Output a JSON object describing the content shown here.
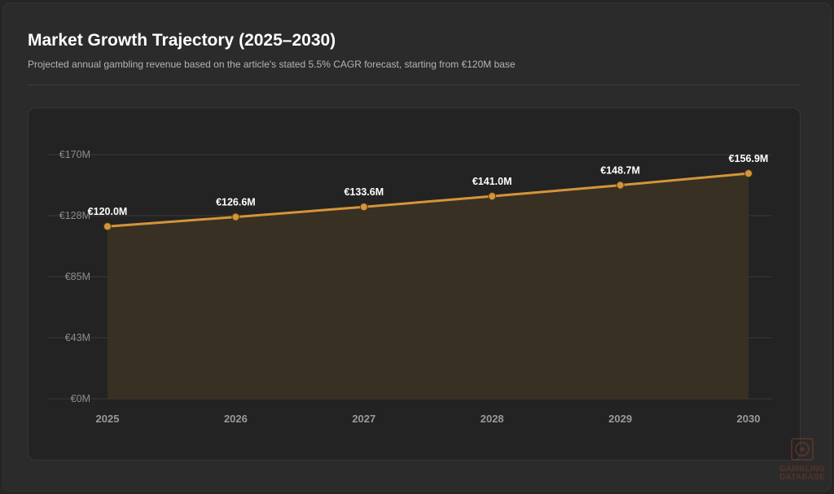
{
  "header": {
    "title": "Market Growth Trajectory (2025–2030)",
    "subtitle": "Projected annual gambling revenue based on the article's stated 5.5% CAGR forecast, starting from €120M base"
  },
  "colors": {
    "line": "#d4953a",
    "area": "#3a3124",
    "grid": "#3a3a3a"
  },
  "chart_data": {
    "type": "area",
    "title": "",
    "xlabel": "",
    "ylabel": "",
    "categories": [
      "2025",
      "2026",
      "2027",
      "2028",
      "2029",
      "2030"
    ],
    "values": [
      120.0,
      126.6,
      133.6,
      141.0,
      148.7,
      156.9
    ],
    "data_labels": [
      "€120.0M",
      "€126.6M",
      "€133.6M",
      "€141.0M",
      "€148.7M",
      "€156.9M"
    ],
    "ylim": [
      0,
      170
    ],
    "y_ticks": [
      0,
      42.5,
      85,
      127.5,
      170
    ],
    "y_tick_labels": [
      "€0M",
      "€43M",
      "€85M",
      "€128M",
      "€170M"
    ],
    "grid": true,
    "legend": "none"
  },
  "watermark": {
    "icon": "dice-icon",
    "line1": "GAMBLING",
    "line2": "DATABASE"
  }
}
